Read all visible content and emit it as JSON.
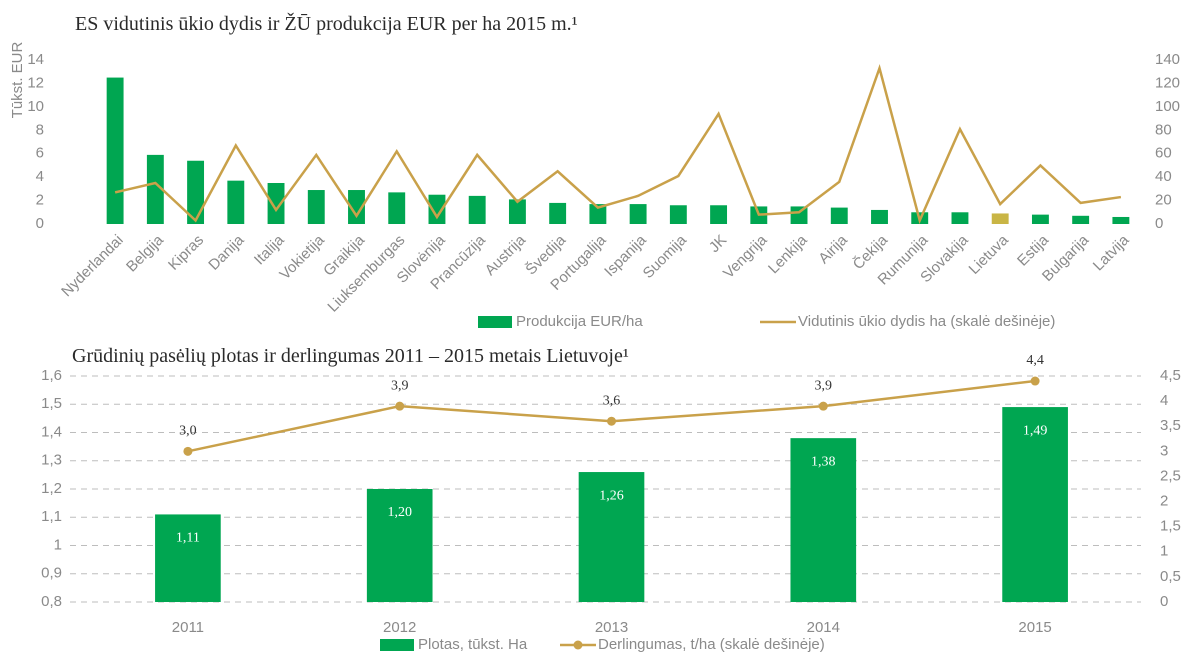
{
  "chart_data": [
    {
      "type": "bar",
      "title": "ES vidutinis ūkio dydis ir ŽŪ produkcija EUR per ha 2015 m.¹",
      "ylabel": "Tūkst. EUR",
      "categories": [
        "Nyderlandai",
        "Belgija",
        "Kipras",
        "Danija",
        "Italija",
        "Vokietija",
        "Graikija",
        "Liuksemburgas",
        "Slovėnija",
        "Prancūzija",
        "Austrija",
        "Švedija",
        "Portugalija",
        "Ispanija",
        "Suomija",
        "JK",
        "Vengrija",
        "Lenkija",
        "Airija",
        "Čekija",
        "Rumunija",
        "Slovakija",
        "Lietuva",
        "Estija",
        "Bulgarija",
        "Latvija"
      ],
      "series": [
        {
          "name": "Produkcija EUR/ha",
          "type": "bar",
          "color": "#00a651",
          "colors": [
            "#00a651",
            "#00a651",
            "#00a651",
            "#00a651",
            "#00a651",
            "#00a651",
            "#00a651",
            "#00a651",
            "#00a651",
            "#00a651",
            "#00a651",
            "#00a651",
            "#00a651",
            "#00a651",
            "#00a651",
            "#00a651",
            "#00a651",
            "#00a651",
            "#00a651",
            "#00a651",
            "#00a651",
            "#00a651",
            "#c9b545",
            "#00a651",
            "#00a651",
            "#00a651"
          ],
          "values": [
            12.5,
            5.9,
            5.4,
            3.7,
            3.5,
            2.9,
            2.9,
            2.7,
            2.5,
            2.4,
            2.1,
            1.8,
            1.7,
            1.7,
            1.6,
            1.6,
            1.5,
            1.5,
            1.4,
            1.2,
            1.0,
            1.0,
            0.9,
            0.8,
            0.7,
            0.6
          ]
        },
        {
          "name": "Vidutinis ūkio dydis ha (skalė dešinėje)",
          "type": "line",
          "axis": "y2",
          "color": "#c9a14a",
          "values": [
            27,
            35,
            3,
            67,
            12,
            59,
            7,
            62,
            6,
            59,
            19,
            45,
            14,
            24,
            41,
            94,
            8,
            10,
            36,
            133,
            3,
            81,
            17,
            50,
            18,
            23
          ]
        }
      ],
      "ylim": [
        0,
        14
      ],
      "yticks": [
        0,
        2,
        4,
        6,
        8,
        10,
        12,
        14
      ],
      "y2lim": [
        0,
        140
      ],
      "y2ticks": [
        0,
        20,
        40,
        60,
        80,
        100,
        120,
        140
      ],
      "grid": false,
      "legend": "bottom"
    },
    {
      "type": "bar",
      "title": "Grūdinių pasėlių plotas ir derlingumas 2011 – 2015 metais Lietuvoje¹",
      "categories": [
        "2011",
        "2012",
        "2013",
        "2014",
        "2015"
      ],
      "series": [
        {
          "name": "Plotas, tūkst. Ha",
          "type": "bar",
          "color": "#00a651",
          "values": [
            1.11,
            1.2,
            1.26,
            1.38,
            1.49
          ],
          "value_labels": [
            "1,11",
            "1,20",
            "1,26",
            "1,38",
            "1,49"
          ]
        },
        {
          "name": "Derlingumas, t/ha (skalė dešinėje)",
          "type": "line",
          "axis": "y2",
          "color": "#c9a14a",
          "markers": true,
          "values": [
            3.0,
            3.9,
            3.6,
            3.9,
            4.4
          ],
          "value_labels": [
            "3,0",
            "3,9",
            "3,6",
            "3,9",
            "4,4"
          ]
        }
      ],
      "ylim": [
        0.8,
        1.6
      ],
      "yticks": [
        {
          "value": 0.8,
          "label": "0,8"
        },
        {
          "value": 0.9,
          "label": "0,9"
        },
        1,
        {
          "value": 1.1,
          "label": "1,1"
        },
        {
          "value": 1.2,
          "label": "1,2"
        },
        {
          "value": 1.3,
          "label": "1,3"
        },
        {
          "value": 1.4,
          "label": "1,4"
        },
        {
          "value": 1.5,
          "label": "1,5"
        },
        {
          "value": 1.6,
          "label": "1,6"
        }
      ],
      "y2lim": [
        0,
        4.5
      ],
      "y2ticks": [
        0,
        {
          "value": 0.5,
          "label": "0,5"
        },
        1,
        {
          "value": 1.5,
          "label": "1,5"
        },
        2,
        {
          "value": 2.5,
          "label": "2,5"
        },
        3,
        {
          "value": 3.5,
          "label": "3,5"
        },
        4,
        {
          "value": 4.5,
          "label": "4,5"
        }
      ],
      "grid": true,
      "legend": "bottom"
    }
  ]
}
